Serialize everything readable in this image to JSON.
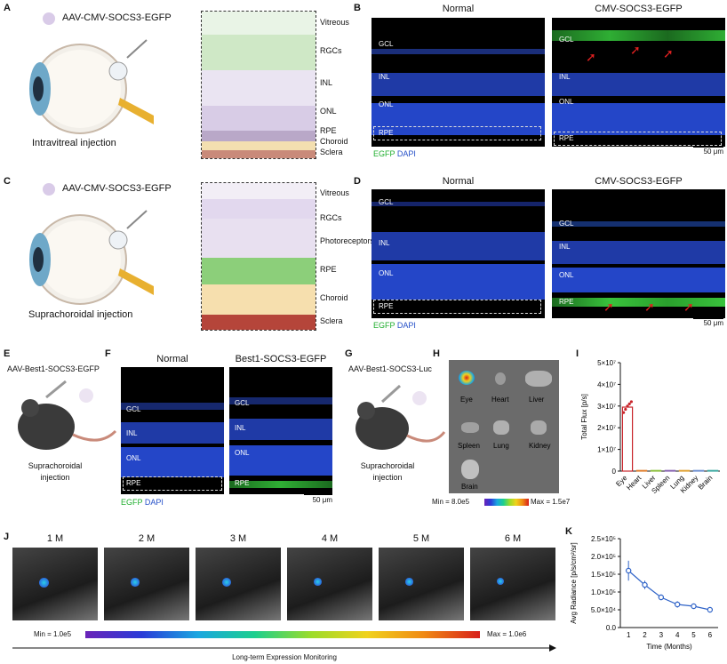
{
  "panels": {
    "A": {
      "letter": "A",
      "vector": "AAV-CMV-SOCS3-EGFP",
      "route": "Intravitreal injection",
      "layers": [
        "Vitreous",
        "RGCs",
        "INL",
        "ONL",
        "RPE",
        "Choroid",
        "Sclera"
      ]
    },
    "B": {
      "letter": "B",
      "col_normal": "Normal",
      "col_treated": "CMV-SOCS3-EGFP",
      "labels": [
        "GCL",
        "INL",
        "ONL",
        "RPE"
      ],
      "legend_egfp": "EGFP",
      "legend_dapi": "DAPI",
      "scale": "50 μm"
    },
    "C": {
      "letter": "C",
      "vector": "AAV-CMV-SOCS3-EGFP",
      "route": "Suprachoroidal injection",
      "layers": [
        "Vitreous",
        "RGCs",
        "Photoreceptors",
        "RPE",
        "Choroid",
        "Sclera"
      ]
    },
    "D": {
      "letter": "D",
      "col_normal": "Normal",
      "col_treated": "CMV-SOCS3-EGFP",
      "labels": [
        "GCL",
        "INL",
        "ONL",
        "RPE"
      ],
      "legend_egfp": "EGFP",
      "legend_dapi": "DAPI",
      "scale": "50 μm"
    },
    "E": {
      "letter": "E",
      "vector": "AAV-Best1-SOCS3-EGFP",
      "route": "Suprachoroidal injection"
    },
    "F": {
      "letter": "F",
      "col_normal": "Normal",
      "col_treated": "Best1-SOCS3-EGFP",
      "labels": [
        "GCL",
        "INL",
        "ONL",
        "RPE"
      ],
      "legend_egfp": "EGFP",
      "legend_dapi": "DAPI",
      "scale": "50 μm"
    },
    "G": {
      "letter": "G",
      "vector": "AAV-Best1-SOCS3-Luc",
      "route": "Suprachoroidal injection"
    },
    "H": {
      "letter": "H",
      "organs": [
        "Eye",
        "Heart",
        "Liver",
        "Spleen",
        "Lung",
        "Kidney",
        "Brain"
      ],
      "min": "Min = 8.0e5",
      "max": "Max = 1.5e7"
    },
    "I": {
      "letter": "I"
    },
    "J": {
      "letter": "J",
      "timepoints": [
        "1 M",
        "2 M",
        "3 M",
        "4 M",
        "5 M",
        "6 M"
      ],
      "min": "Min = 1.0e5",
      "max": "Max = 1.0e6",
      "caption": "Long-term Expression Monitoring"
    },
    "K": {
      "letter": "K"
    }
  },
  "chart_data": [
    {
      "type": "bar",
      "ylabel": "Total Flux [p/s]",
      "categories": [
        "Eye",
        "Heart",
        "Liver",
        "Spleen",
        "Lung",
        "Kidney",
        "Brain"
      ],
      "values": [
        29500000,
        300000,
        300000,
        300000,
        300000,
        300000,
        300000
      ],
      "ylim": [
        0,
        50000000
      ],
      "yticks": [
        "0",
        "1×10⁷",
        "2×10⁷",
        "3×10⁷",
        "4×10⁷",
        "5×10⁷"
      ],
      "colors": [
        "#c8242a",
        "#e07d2a",
        "#8bbf3a",
        "#8560b0",
        "#e0a030",
        "#6b8ed0",
        "#3aa8a0"
      ]
    },
    {
      "type": "line",
      "ylabel": "Avg Radiance [p/s/cm²/sr]",
      "xlabel": "Time (Months)",
      "x": [
        1,
        2,
        3,
        4,
        5,
        6
      ],
      "y": [
        160000,
        120000,
        85000,
        65000,
        60000,
        50000
      ],
      "ylim": [
        0,
        250000
      ],
      "yticks": [
        "0.0",
        "5.0×10⁴",
        "1.0×10⁵",
        "1.5×10⁵",
        "2.0×10⁵",
        "2.5×10⁵"
      ],
      "color": "#2f63c8"
    }
  ]
}
